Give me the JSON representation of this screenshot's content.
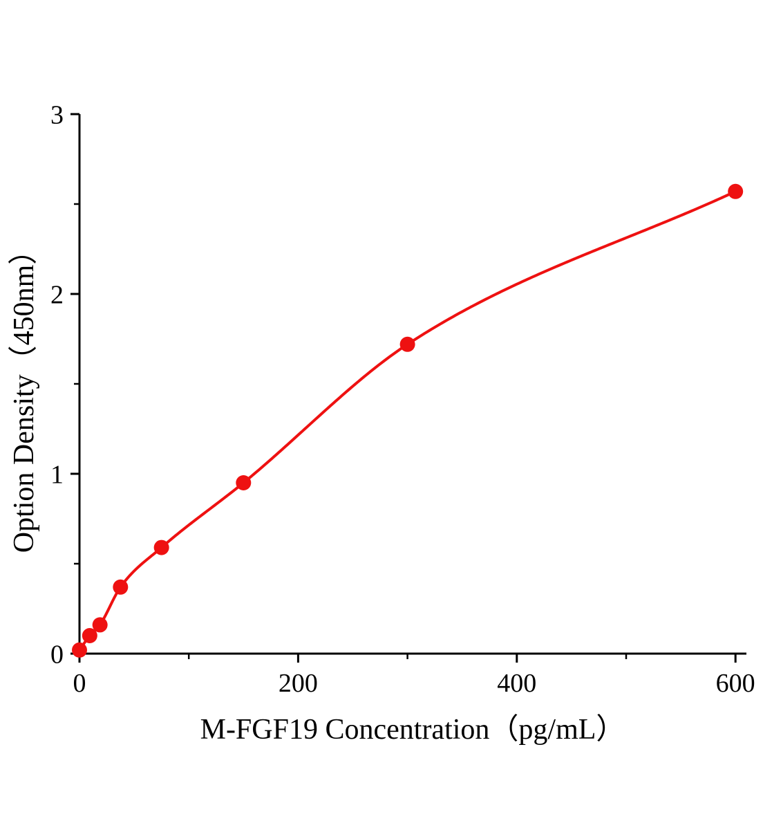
{
  "chart_data": {
    "type": "scatter",
    "curve": "smooth fitted line through points",
    "title": "",
    "xlabel": "M-FGF19 Concentration（pg/mL）",
    "ylabel": "Option Density（450nm）",
    "x": [
      0,
      9.375,
      18.75,
      37.5,
      75,
      150,
      300,
      600
    ],
    "y": [
      0.02,
      0.1,
      0.16,
      0.37,
      0.59,
      0.95,
      1.72,
      2.57
    ],
    "xlim": [
      0,
      610
    ],
    "ylim": [
      0,
      3
    ],
    "x_major_ticks": [
      0,
      200,
      400,
      600
    ],
    "x_minor_ticks": [
      100,
      300,
      500
    ],
    "y_major_ticks": [
      0,
      1,
      2,
      3
    ],
    "y_minor_ticks": [
      0.5,
      1.5,
      2.5
    ],
    "grid": false,
    "legend": "none",
    "marker": "filled-circle",
    "marker_color": "#ee1111",
    "line_color": "#ee1111",
    "axis_color": "#000000",
    "background": "#ffffff"
  }
}
